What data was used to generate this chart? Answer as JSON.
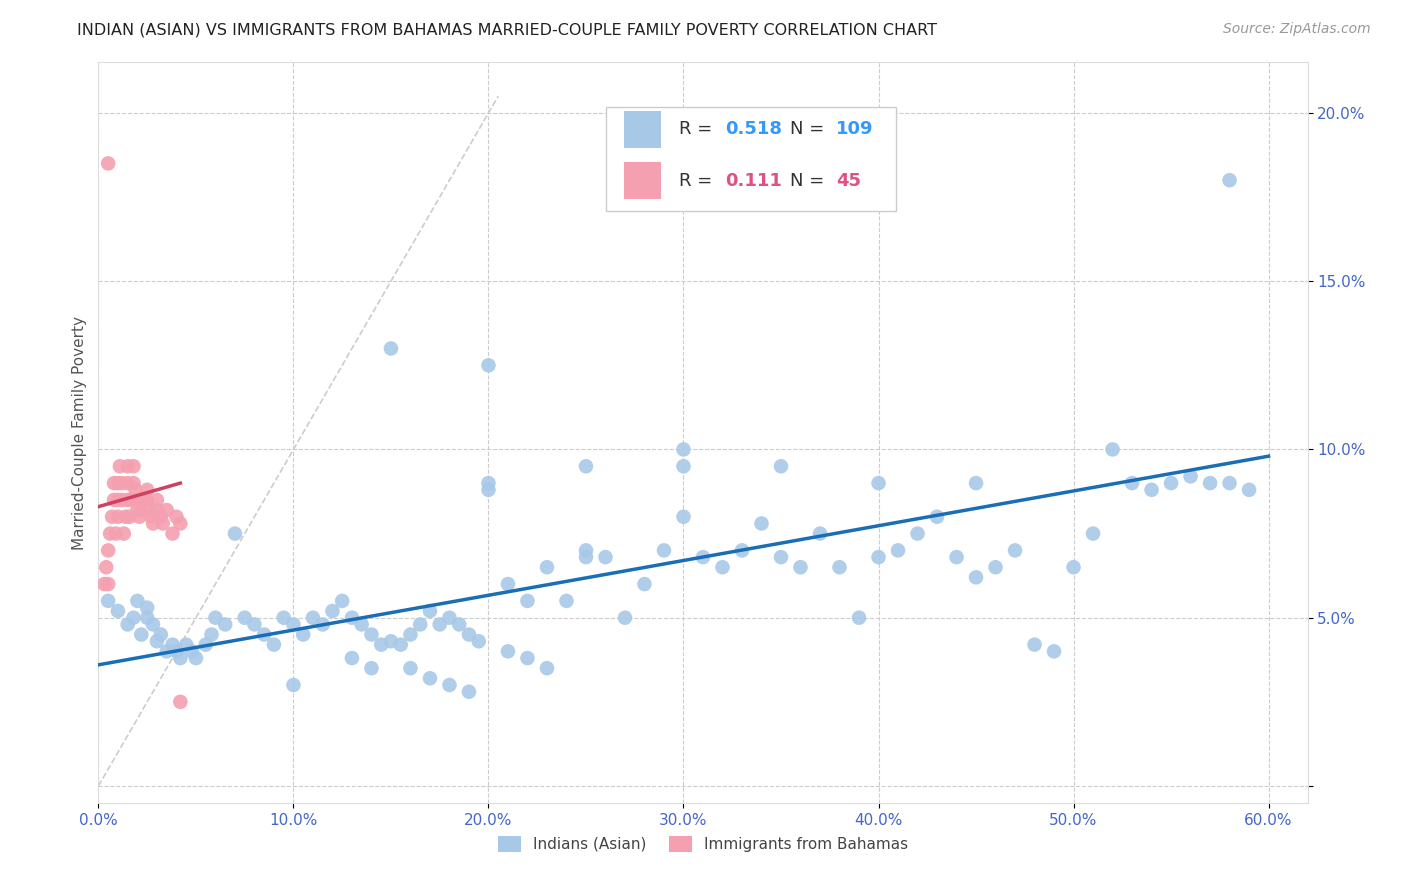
{
  "title": "INDIAN (ASIAN) VS IMMIGRANTS FROM BAHAMAS MARRIED-COUPLE FAMILY POVERTY CORRELATION CHART",
  "source": "Source: ZipAtlas.com",
  "ylabel": "Married-Couple Family Poverty",
  "xlim": [
    0.0,
    0.62
  ],
  "ylim": [
    -0.005,
    0.215
  ],
  "xticks": [
    0.0,
    0.1,
    0.2,
    0.3,
    0.4,
    0.5,
    0.6
  ],
  "xtick_labels": [
    "0.0%",
    "10.0%",
    "20.0%",
    "30.0%",
    "40.0%",
    "50.0%",
    "60.0%"
  ],
  "yticks": [
    0.0,
    0.05,
    0.1,
    0.15,
    0.2
  ],
  "ytick_labels": [
    "",
    "5.0%",
    "10.0%",
    "15.0%",
    "20.0%"
  ],
  "blue_R": 0.518,
  "blue_N": 109,
  "pink_R": 0.111,
  "pink_N": 45,
  "blue_color": "#a8c8e8",
  "pink_color": "#f4a0b0",
  "blue_line_color": "#1a6eb5",
  "pink_line_color": "#d04060",
  "blue_label": "Indians (Asian)",
  "pink_label": "Immigrants from Bahamas",
  "axis_label_color": "#4466cc",
  "background_color": "#ffffff",
  "grid_color": "#cccccc",
  "blue_scatter_x": [
    0.005,
    0.01,
    0.015,
    0.018,
    0.02,
    0.022,
    0.025,
    0.025,
    0.028,
    0.03,
    0.032,
    0.035,
    0.038,
    0.04,
    0.042,
    0.045,
    0.048,
    0.05,
    0.055,
    0.058,
    0.06,
    0.065,
    0.07,
    0.075,
    0.08,
    0.085,
    0.09,
    0.095,
    0.1,
    0.105,
    0.11,
    0.115,
    0.12,
    0.125,
    0.13,
    0.135,
    0.14,
    0.145,
    0.15,
    0.155,
    0.16,
    0.165,
    0.17,
    0.175,
    0.18,
    0.185,
    0.19,
    0.195,
    0.2,
    0.21,
    0.22,
    0.23,
    0.24,
    0.25,
    0.26,
    0.27,
    0.28,
    0.29,
    0.3,
    0.31,
    0.32,
    0.33,
    0.34,
    0.35,
    0.36,
    0.37,
    0.38,
    0.39,
    0.4,
    0.41,
    0.42,
    0.43,
    0.44,
    0.45,
    0.46,
    0.47,
    0.48,
    0.49,
    0.5,
    0.51,
    0.52,
    0.53,
    0.54,
    0.55,
    0.56,
    0.57,
    0.58,
    0.59,
    0.15,
    0.2,
    0.25,
    0.3,
    0.35,
    0.4,
    0.45,
    0.2,
    0.25,
    0.3,
    0.1,
    0.58,
    0.16,
    0.17,
    0.18,
    0.19,
    0.13,
    0.14,
    0.21,
    0.22,
    0.23
  ],
  "blue_scatter_y": [
    0.055,
    0.052,
    0.048,
    0.05,
    0.055,
    0.045,
    0.05,
    0.053,
    0.048,
    0.043,
    0.045,
    0.04,
    0.042,
    0.04,
    0.038,
    0.042,
    0.04,
    0.038,
    0.042,
    0.045,
    0.05,
    0.048,
    0.075,
    0.05,
    0.048,
    0.045,
    0.042,
    0.05,
    0.048,
    0.045,
    0.05,
    0.048,
    0.052,
    0.055,
    0.05,
    0.048,
    0.045,
    0.042,
    0.043,
    0.042,
    0.045,
    0.048,
    0.052,
    0.048,
    0.05,
    0.048,
    0.045,
    0.043,
    0.088,
    0.06,
    0.055,
    0.065,
    0.055,
    0.07,
    0.068,
    0.05,
    0.06,
    0.07,
    0.08,
    0.068,
    0.065,
    0.07,
    0.078,
    0.068,
    0.065,
    0.075,
    0.065,
    0.05,
    0.068,
    0.07,
    0.075,
    0.08,
    0.068,
    0.062,
    0.065,
    0.07,
    0.042,
    0.04,
    0.065,
    0.075,
    0.1,
    0.09,
    0.088,
    0.09,
    0.092,
    0.09,
    0.09,
    0.088,
    0.13,
    0.125,
    0.068,
    0.095,
    0.095,
    0.09,
    0.09,
    0.09,
    0.095,
    0.1,
    0.03,
    0.18,
    0.035,
    0.032,
    0.03,
    0.028,
    0.038,
    0.035,
    0.04,
    0.038,
    0.035
  ],
  "pink_scatter_x": [
    0.003,
    0.004,
    0.005,
    0.005,
    0.006,
    0.007,
    0.008,
    0.008,
    0.009,
    0.01,
    0.01,
    0.01,
    0.011,
    0.012,
    0.012,
    0.013,
    0.014,
    0.015,
    0.015,
    0.015,
    0.016,
    0.017,
    0.018,
    0.018,
    0.019,
    0.02,
    0.02,
    0.021,
    0.022,
    0.023,
    0.025,
    0.025,
    0.026,
    0.027,
    0.028,
    0.03,
    0.03,
    0.032,
    0.033,
    0.035,
    0.038,
    0.04,
    0.042,
    0.005,
    0.042
  ],
  "pink_scatter_y": [
    0.06,
    0.065,
    0.06,
    0.07,
    0.075,
    0.08,
    0.085,
    0.09,
    0.075,
    0.08,
    0.085,
    0.09,
    0.095,
    0.085,
    0.09,
    0.075,
    0.08,
    0.085,
    0.09,
    0.095,
    0.08,
    0.085,
    0.09,
    0.095,
    0.088,
    0.082,
    0.085,
    0.08,
    0.082,
    0.085,
    0.085,
    0.088,
    0.082,
    0.08,
    0.078,
    0.082,
    0.085,
    0.08,
    0.078,
    0.082,
    0.075,
    0.08,
    0.078,
    0.185,
    0.025
  ],
  "blue_trend_x0": 0.0,
  "blue_trend_y0": 0.036,
  "blue_trend_x1": 0.6,
  "blue_trend_y1": 0.098,
  "pink_trend_x0": 0.0,
  "pink_trend_y0": 0.083,
  "pink_trend_x1": 0.042,
  "pink_trend_y1": 0.09
}
